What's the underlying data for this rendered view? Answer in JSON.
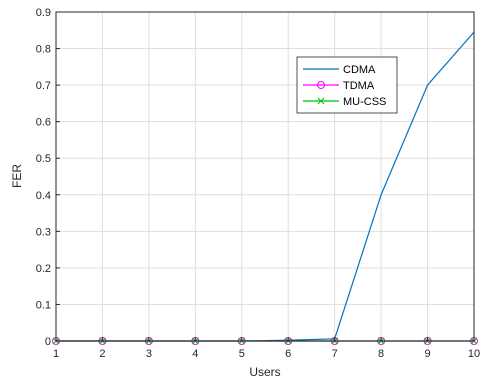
{
  "chart_data": {
    "type": "line",
    "xlabel": "Users",
    "ylabel": "FER",
    "xlim": [
      1,
      10
    ],
    "ylim": [
      0,
      0.9
    ],
    "xticks": [
      "1",
      "2",
      "3",
      "4",
      "5",
      "6",
      "7",
      "8",
      "9",
      "10"
    ],
    "yticks": [
      "0",
      "0.1",
      "0.2",
      "0.3",
      "0.4",
      "0.5",
      "0.6",
      "0.7",
      "0.8",
      "0.9"
    ],
    "grid": true,
    "legend_position": "upper-right",
    "x": [
      1,
      2,
      3,
      4,
      5,
      6,
      7,
      8,
      9,
      10
    ],
    "series": [
      {
        "name": "CDMA",
        "color": "#0072BD",
        "marker": "none",
        "values": [
          0,
          0,
          0,
          0,
          0,
          0.002,
          0.006,
          0.4,
          0.7,
          0.845
        ]
      },
      {
        "name": "TDMA",
        "color": "#FF00FF",
        "marker": "circle",
        "values": [
          0,
          0,
          0,
          0,
          0,
          0,
          0,
          0,
          0,
          0
        ]
      },
      {
        "name": "MU-CSS",
        "color": "#00C000",
        "marker": "x",
        "values": [
          0,
          0,
          0,
          0,
          0,
          0,
          0,
          0,
          0,
          0
        ]
      }
    ]
  }
}
